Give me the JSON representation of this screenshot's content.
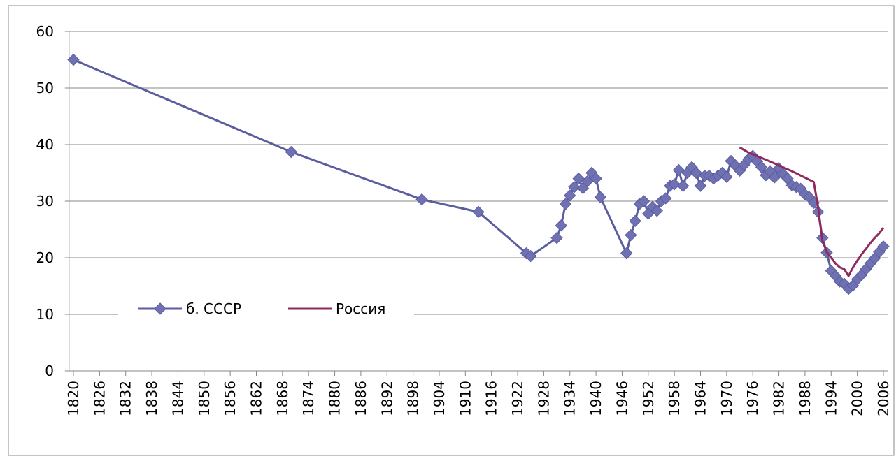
{
  "chart_data": {
    "type": "line",
    "xlim": [
      1819,
      2007
    ],
    "xticks": [
      1820,
      1826,
      1832,
      1838,
      1844,
      1850,
      1856,
      1862,
      1868,
      1874,
      1880,
      1886,
      1892,
      1898,
      1904,
      1910,
      1916,
      1922,
      1928,
      1934,
      1940,
      1946,
      1952,
      1958,
      1964,
      1970,
      1976,
      1982,
      1988,
      1994,
      2000,
      2006
    ],
    "ylim": [
      0,
      60
    ],
    "yticks": [
      0,
      10,
      20,
      30,
      40,
      50,
      60
    ],
    "grid": true,
    "legend": "inside-bottom-left",
    "series": [
      {
        "name": "б. СССР",
        "color": "#5b5e9e",
        "marker": "diamond",
        "x": [
          1820,
          1870,
          1900,
          1913,
          1924,
          1925,
          1931,
          1932,
          1933,
          1934,
          1935,
          1936,
          1937,
          1938,
          1939,
          1940,
          1941,
          1947,
          1948,
          1949,
          1950,
          1951,
          1952,
          1953,
          1954,
          1955,
          1956,
          1957,
          1958,
          1959,
          1960,
          1961,
          1962,
          1963,
          1964,
          1965,
          1966,
          1967,
          1968,
          1969,
          1970,
          1971,
          1972,
          1973,
          1974,
          1975,
          1976,
          1977,
          1978,
          1979,
          1980,
          1981,
          1982,
          1983,
          1984,
          1985,
          1986,
          1987,
          1988,
          1989,
          1990,
          1991,
          1992,
          1993,
          1994,
          1995,
          1996,
          1997,
          1998,
          1999,
          2000,
          2001,
          2002,
          2003,
          2004,
          2005,
          2006
        ],
        "values": [
          55,
          38.7,
          30.3,
          28.1,
          20.8,
          20.3,
          23.5,
          25.7,
          29.5,
          31,
          32.5,
          34,
          32.3,
          33.5,
          35,
          34,
          30.7,
          20.8,
          24,
          26.5,
          29.5,
          30,
          27.8,
          29,
          28.3,
          30,
          30.5,
          32.7,
          33,
          35.5,
          32.7,
          35,
          36,
          35,
          32.7,
          34.5,
          34.5,
          34,
          34.5,
          35,
          34.3,
          37.1,
          36.3,
          35.4,
          36.4,
          37.4,
          38,
          37,
          36,
          34.6,
          35.3,
          34.2,
          35.8,
          34.8,
          34,
          32.8,
          32.5,
          32.2,
          31.2,
          30.7,
          29.7,
          28.1,
          23.5,
          20.9,
          17.7,
          16.8,
          15.8,
          15.4,
          14.5,
          15.1,
          16.2,
          17,
          18,
          19,
          19.9,
          21,
          22
        ]
      },
      {
        "name": "Россия",
        "color": "#8e2a5c",
        "x": [
          1973,
          1975,
          1980,
          1985,
          1990,
          1991,
          1992,
          1993,
          1994,
          1995,
          1996,
          1997,
          1998,
          1999,
          2000,
          2001,
          2002,
          2003,
          2004,
          2005,
          2006
        ],
        "values": [
          39.5,
          38.6,
          37,
          35.3,
          33.4,
          29,
          23,
          21,
          20,
          19,
          18.3,
          18,
          16.8,
          18.3,
          19.5,
          20.6,
          21.6,
          22.6,
          23.5,
          24.3,
          25.3
        ]
      }
    ]
  }
}
